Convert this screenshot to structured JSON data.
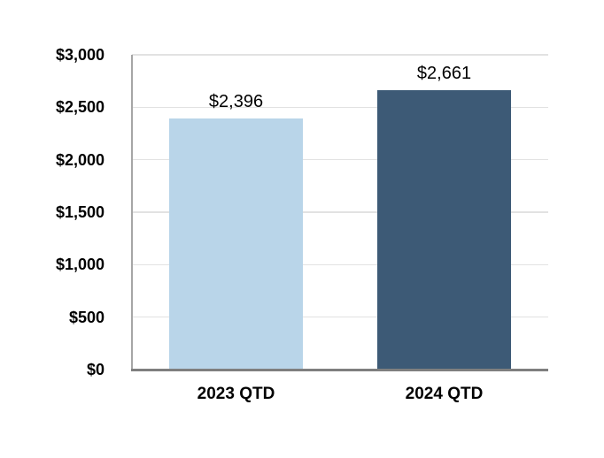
{
  "chart_data": {
    "type": "bar",
    "categories": [
      "2023 QTD",
      "2024 QTD"
    ],
    "values": [
      2396,
      2661
    ],
    "value_labels": [
      "$2,396",
      "$2,661"
    ],
    "bar_colors": [
      "#b9d5e9",
      "#3d5a76"
    ],
    "title": "",
    "xlabel": "",
    "ylabel": "",
    "ylim": [
      0,
      3000
    ],
    "ytick_interval": 500,
    "ytick_labels": [
      "$0",
      "$500",
      "$1,000",
      "$1,500",
      "$2,000",
      "$2,500",
      "$3,000"
    ],
    "grid": true,
    "legend": "none"
  },
  "colors": {
    "background": "#ffffff",
    "gridline": "#e2e2e2",
    "y_axis_line": "#a6a6a6",
    "x_axis_line": "#7f7f7f",
    "text": "#000000"
  }
}
